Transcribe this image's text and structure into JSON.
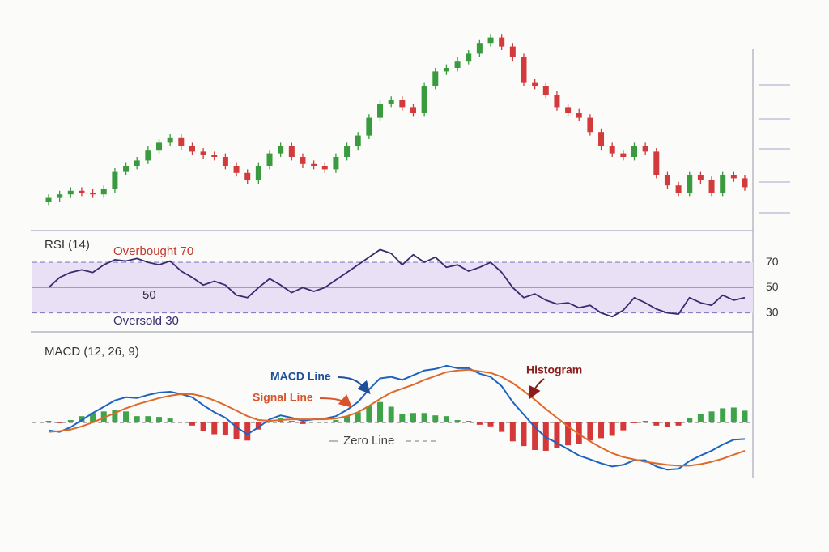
{
  "chart_data": [
    {
      "type": "candlestick",
      "open": [
        5,
        7,
        9,
        11,
        10,
        9,
        12,
        22,
        25,
        28,
        34,
        38,
        41,
        36,
        33,
        31,
        30,
        25,
        21,
        17,
        25,
        32,
        36,
        30,
        26,
        25,
        23,
        30,
        36,
        42,
        52,
        60,
        62,
        58,
        55,
        70,
        78,
        80,
        84,
        88,
        94,
        97,
        92,
        86,
        72,
        70,
        65,
        58,
        55,
        52,
        44,
        36,
        32,
        30,
        36,
        33,
        20,
        14,
        10,
        20,
        17,
        10,
        20,
        18
      ],
      "high": [
        9,
        11,
        13,
        13,
        12,
        14,
        24,
        27,
        30,
        36,
        40,
        43,
        43,
        38,
        35,
        33,
        32,
        27,
        23,
        27,
        34,
        38,
        38,
        32,
        28,
        27,
        32,
        38,
        44,
        54,
        62,
        64,
        64,
        60,
        72,
        80,
        82,
        86,
        90,
        96,
        99,
        99,
        94,
        88,
        74,
        72,
        67,
        60,
        57,
        54,
        46,
        38,
        34,
        38,
        38,
        35,
        22,
        16,
        22,
        22,
        19,
        22,
        22,
        20
      ],
      "low": [
        3,
        5,
        7,
        8,
        7,
        7,
        10,
        20,
        23,
        26,
        32,
        36,
        34,
        31,
        29,
        28,
        23,
        19,
        15,
        15,
        23,
        30,
        28,
        24,
        23,
        21,
        21,
        28,
        34,
        40,
        50,
        58,
        56,
        53,
        53,
        68,
        76,
        78,
        82,
        86,
        92,
        90,
        84,
        70,
        68,
        63,
        56,
        53,
        50,
        42,
        34,
        30,
        28,
        28,
        31,
        18,
        12,
        8,
        8,
        15,
        8,
        8,
        16,
        11
      ],
      "close": [
        7,
        9,
        11,
        10,
        9,
        12,
        22,
        25,
        28,
        34,
        38,
        41,
        36,
        33,
        31,
        30,
        25,
        21,
        17,
        25,
        32,
        36,
        30,
        26,
        25,
        23,
        30,
        36,
        42,
        52,
        60,
        62,
        58,
        55,
        70,
        78,
        80,
        84,
        88,
        94,
        97,
        92,
        86,
        72,
        70,
        65,
        58,
        55,
        52,
        44,
        36,
        32,
        30,
        36,
        33,
        20,
        14,
        10,
        20,
        17,
        10,
        20,
        18,
        13
      ],
      "up_color": "#3a9a3e",
      "down_color": "#d23a3c",
      "ylim": [
        0,
        100
      ]
    },
    {
      "type": "line",
      "title": "RSI (14)",
      "color": "#3b2a6e",
      "values": [
        50,
        58,
        62,
        64,
        62,
        68,
        72,
        71,
        73,
        70,
        68,
        71,
        63,
        58,
        52,
        55,
        52,
        44,
        42,
        50,
        57,
        52,
        46,
        50,
        47,
        50,
        56,
        62,
        68,
        74,
        80,
        77,
        68,
        76,
        70,
        74,
        66,
        68,
        63,
        66,
        70,
        62,
        50,
        42,
        45,
        40,
        37,
        38,
        34,
        36,
        30,
        27,
        32,
        42,
        38,
        33,
        30,
        29,
        42,
        38,
        36,
        44,
        40,
        42
      ],
      "ylim": [
        15,
        95
      ],
      "yticks": [
        70,
        50,
        30
      ],
      "band": [
        30,
        70
      ],
      "band_color": "#e9e0f6",
      "overbought_label": "Overbought 70",
      "oversold_label": "Oversold 30",
      "midline_label": "50"
    },
    {
      "type": "macd",
      "title": "MACD (12, 26, 9)",
      "series": [
        {
          "name": "MACD Line",
          "color": "#1f63c0",
          "values": [
            -1.0,
            -1.2,
            -0.6,
            0.3,
            1.2,
            2.0,
            2.8,
            3.2,
            3.1,
            3.5,
            3.8,
            3.9,
            3.6,
            3.2,
            2.2,
            1.3,
            0.6,
            -0.6,
            -1.5,
            -0.6,
            0.4,
            0.9,
            0.6,
            0.2,
            0.4,
            0.5,
            0.8,
            1.6,
            2.6,
            4.2,
            5.6,
            5.8,
            5.4,
            6.0,
            6.6,
            6.8,
            7.2,
            6.9,
            6.9,
            6.2,
            5.8,
            4.6,
            2.6,
            1.0,
            -0.6,
            -1.9,
            -2.6,
            -3.4,
            -4.2,
            -4.7,
            -5.2,
            -5.6,
            -5.4,
            -4.8,
            -4.8,
            -5.6,
            -6.0,
            -5.9,
            -4.9,
            -4.2,
            -3.6,
            -2.8,
            -2.2,
            -2.1
          ]
        },
        {
          "name": "Signal Line",
          "color": "#dd6a2a",
          "values": [
            -1.2,
            -1.1,
            -0.9,
            -0.5,
            0,
            0.6,
            1.2,
            1.8,
            2.3,
            2.7,
            3.1,
            3.4,
            3.6,
            3.6,
            3.3,
            2.8,
            2.2,
            1.5,
            0.8,
            0.3,
            0.2,
            0.3,
            0.4,
            0.4,
            0.4,
            0.4,
            0.5,
            0.8,
            1.3,
            2.1,
            3.0,
            3.8,
            4.3,
            4.8,
            5.4,
            5.9,
            6.4,
            6.6,
            6.7,
            6.5,
            6.3,
            5.8,
            5.0,
            4.0,
            2.9,
            1.7,
            0.6,
            -0.5,
            -1.5,
            -2.4,
            -3.2,
            -3.9,
            -4.4,
            -4.7,
            -5.0,
            -5.2,
            -5.4,
            -5.5,
            -5.5,
            -5.3,
            -5.0,
            -4.6,
            -4.1,
            -3.6
          ]
        },
        {
          "name": "Histogram",
          "up_color": "#3fa34a",
          "down_color": "#d43838",
          "values": [
            0.2,
            -0.1,
            0.3,
            0.8,
            1.2,
            1.4,
            1.6,
            1.4,
            0.8,
            0.8,
            0.7,
            0.5,
            0,
            -0.4,
            -1.1,
            -1.5,
            -1.6,
            -2.1,
            -2.3,
            -0.9,
            0.2,
            0.6,
            0.2,
            -0.2,
            0,
            0.1,
            0.3,
            0.8,
            1.3,
            2.1,
            2.6,
            2.0,
            1.1,
            1.2,
            1.2,
            0.9,
            0.8,
            0.3,
            0.2,
            -0.3,
            -0.5,
            -1.2,
            -2.4,
            -3.0,
            -3.5,
            -3.6,
            -3.2,
            -2.9,
            -2.7,
            -2.3,
            -2.0,
            -1.7,
            -1.0,
            -0.1,
            0.2,
            -0.4,
            -0.6,
            -0.4,
            0.6,
            1.1,
            1.4,
            1.8,
            1.9,
            1.5
          ]
        }
      ],
      "ylim": [
        -7,
        11
      ],
      "zero_line_label": "Zero Line"
    }
  ]
}
